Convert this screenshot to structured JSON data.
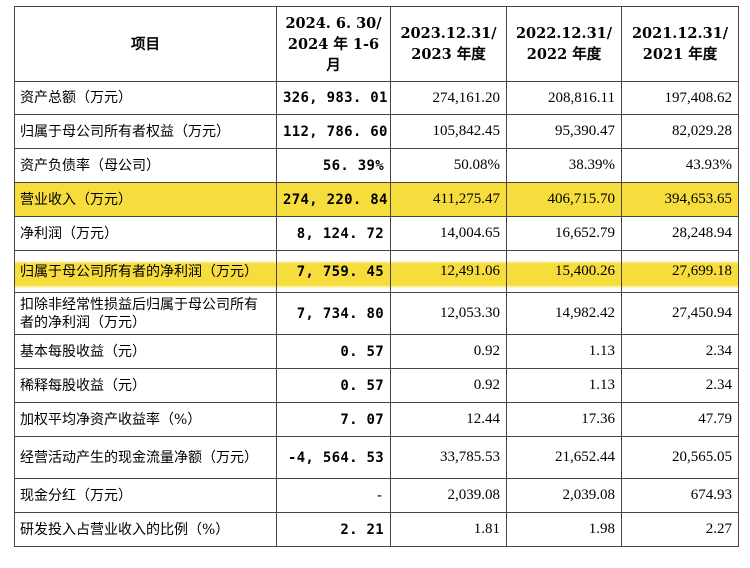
{
  "table": {
    "header": {
      "item": "项目",
      "col1": "2024. 6. 30/ 2024 年 1-6 月",
      "col2": "2023.12.31/ 2023 年度",
      "col3": "2022.12.31/ 2022 年度",
      "col4": "2021.12.31/ 2021 年度"
    },
    "rows": [
      {
        "label": "资产总额（万元）",
        "v1": "326, 983. 01",
        "v2": "274,161.20",
        "v3": "208,816.11",
        "v4": "197,408.62"
      },
      {
        "label": "归属于母公司所有者权益（万元）",
        "v1": "112, 786. 60",
        "v2": "105,842.45",
        "v3": "95,390.47",
        "v4": "82,029.28"
      },
      {
        "label": "资产负债率（母公司）",
        "v1": "56. 39%",
        "v2": "50.08%",
        "v3": "38.39%",
        "v4": "43.93%"
      },
      {
        "label": "营业收入（万元）",
        "v1": "274, 220. 84",
        "v2": "411,275.47",
        "v3": "406,715.70",
        "v4": "394,653.65"
      },
      {
        "label": "净利润（万元）",
        "v1": "8, 124. 72",
        "v2": "14,004.65",
        "v3": "16,652.79",
        "v4": "28,248.94"
      },
      {
        "label": "归属于母公司所有者的净利润（万元）",
        "v1": "7, 759. 45",
        "v2": "12,491.06",
        "v3": "15,400.26",
        "v4": "27,699.18"
      },
      {
        "label": "扣除非经常性损益后归属于母公司所有者的净利润（万元）",
        "v1": "7, 734. 80",
        "v2": "12,053.30",
        "v3": "14,982.42",
        "v4": "27,450.94"
      },
      {
        "label": "基本每股收益（元）",
        "v1": "0. 57",
        "v2": "0.92",
        "v3": "1.13",
        "v4": "2.34"
      },
      {
        "label": "稀释每股收益（元）",
        "v1": "0. 57",
        "v2": "0.92",
        "v3": "1.13",
        "v4": "2.34"
      },
      {
        "label": "加权平均净资产收益率（%）",
        "v1": "7. 07",
        "v2": "12.44",
        "v3": "17.36",
        "v4": "47.79"
      },
      {
        "label": "经营活动产生的现金流量净额（万元）",
        "v1": "-4, 564. 53",
        "v2": "33,785.53",
        "v3": "21,652.44",
        "v4": "20,565.05"
      },
      {
        "label": "现金分红（万元）",
        "v1": "-",
        "v2": "2,039.08",
        "v3": "2,039.08",
        "v4": "674.93"
      },
      {
        "label": "研发投入占营业收入的比例（%）",
        "v1": "2. 21",
        "v2": "1.81",
        "v3": "1.98",
        "v4": "2.27"
      }
    ],
    "highlight_color": "#f6dc3c"
  }
}
